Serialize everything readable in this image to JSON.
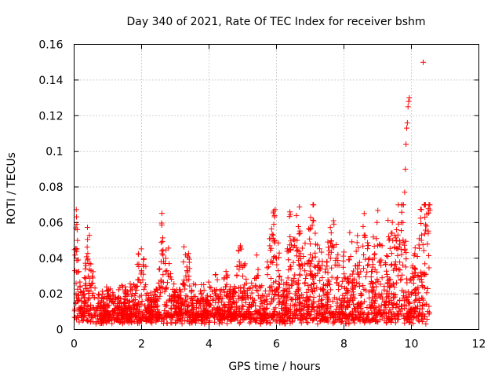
{
  "chart_data": {
    "type": "scatter",
    "title": "Day 340 of 2021, Rate Of TEC Index for receiver bshm",
    "xlabel": "GPS time / hours",
    "ylabel": "ROTI / TECUs",
    "xlim": [
      0,
      12
    ],
    "ylim": [
      0,
      0.16
    ],
    "xticks": [
      0,
      2,
      4,
      6,
      8,
      10,
      12
    ],
    "xtick_labels": [
      "0",
      "2",
      "4",
      "6",
      "8",
      "10",
      "12"
    ],
    "yticks": [
      0,
      0.02,
      0.04,
      0.06,
      0.08,
      0.1,
      0.12,
      0.14,
      0.16
    ],
    "ytick_labels": [
      "0",
      "0.02",
      "0.04",
      "0.06",
      "0.08",
      "0.1",
      "0.12",
      "0.14",
      "0.16"
    ],
    "grid": true,
    "marker": "plus",
    "color": "#ff0000",
    "series": [
      {
        "name": "ROTI",
        "x": [
          0.02,
          0.05,
          0.08,
          0.1,
          0.12,
          0.05,
          0.4,
          0.45,
          0.5,
          0.55,
          0.6,
          0.3,
          1.0,
          1.5,
          1.9,
          2.0,
          2.05,
          2.1,
          2.6,
          2.7,
          2.75,
          2.8,
          3.3,
          3.35,
          3.4,
          4.2,
          4.5,
          4.9,
          4.95,
          5.0,
          5.05,
          5.4,
          5.8,
          5.9,
          5.95,
          6.0,
          6.05,
          6.4,
          6.5,
          6.6,
          6.7,
          6.8,
          7.0,
          7.1,
          7.15,
          7.3,
          7.5,
          7.6,
          7.7,
          7.8,
          8.0,
          8.2,
          8.4,
          8.6,
          8.7,
          8.9,
          9.0,
          9.1,
          9.3,
          9.4,
          9.5,
          9.6,
          9.7,
          9.75,
          9.8,
          9.82,
          9.84,
          9.86,
          9.88,
          9.9,
          9.92,
          9.94,
          10.0,
          10.1,
          10.2,
          10.3,
          10.35,
          10.4,
          10.45,
          10.5,
          10.55,
          0.2,
          0.7,
          1.2,
          1.7,
          2.3,
          3.0,
          3.7,
          4.4,
          5.2,
          5.6,
          6.3,
          6.9,
          7.4,
          8.1,
          8.5,
          9.2,
          10.05,
          10.25,
          10.52
        ],
        "y": [
          0.033,
          0.057,
          0.059,
          0.05,
          0.039,
          0.015,
          0.039,
          0.037,
          0.033,
          0.026,
          0.018,
          0.012,
          0.02,
          0.012,
          0.028,
          0.033,
          0.031,
          0.024,
          0.044,
          0.037,
          0.033,
          0.03,
          0.042,
          0.033,
          0.028,
          0.02,
          0.024,
          0.038,
          0.036,
          0.03,
          0.025,
          0.029,
          0.047,
          0.053,
          0.05,
          0.04,
          0.033,
          0.052,
          0.046,
          0.044,
          0.054,
          0.041,
          0.048,
          0.061,
          0.054,
          0.034,
          0.038,
          0.04,
          0.046,
          0.036,
          0.029,
          0.041,
          0.036,
          0.053,
          0.036,
          0.042,
          0.047,
          0.039,
          0.041,
          0.054,
          0.046,
          0.053,
          0.06,
          0.06,
          0.077,
          0.09,
          0.104,
          0.113,
          0.116,
          0.125,
          0.128,
          0.13,
          0.02,
          0.032,
          0.03,
          0.053,
          0.15,
          0.063,
          0.058,
          0.054,
          0.067,
          0.008,
          0.006,
          0.009,
          0.011,
          0.007,
          0.01,
          0.012,
          0.009,
          0.01,
          0.012,
          0.011,
          0.014,
          0.013,
          0.015,
          0.012,
          0.014,
          0.012,
          0.015,
          0.013
        ]
      }
    ]
  }
}
